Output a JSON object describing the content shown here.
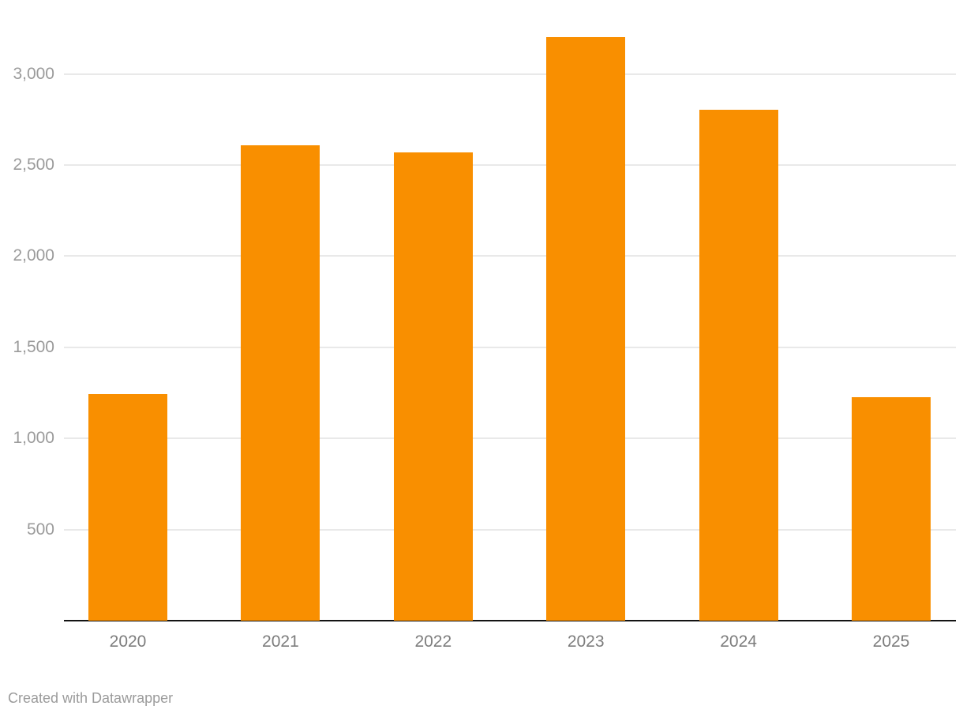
{
  "footer": {
    "credit": "Created with Datawrapper"
  },
  "colors": {
    "background": "#ffffff",
    "bar": "#f98f00",
    "gridline": "#e9e9e9",
    "axis_line": "#131313",
    "y_label": "#9b9b9b",
    "x_label": "#7d7d7d",
    "credit": "#9b9b9b"
  },
  "chart_data": {
    "type": "bar",
    "title": "",
    "xlabel": "",
    "ylabel": "",
    "categories": [
      "2020",
      "2021",
      "2022",
      "2023",
      "2024",
      "2025"
    ],
    "values": [
      1245,
      2610,
      2570,
      3200,
      2805,
      1225
    ],
    "ylim": [
      0,
      3400
    ],
    "yticks": [
      500,
      1000,
      1500,
      2000,
      2500,
      3000
    ],
    "ytick_labels": [
      "500",
      "1,000",
      "1,500",
      "2,000",
      "2,500",
      "3,000"
    ],
    "grid": true,
    "legend": "none",
    "bar_color": "#f98f00"
  }
}
